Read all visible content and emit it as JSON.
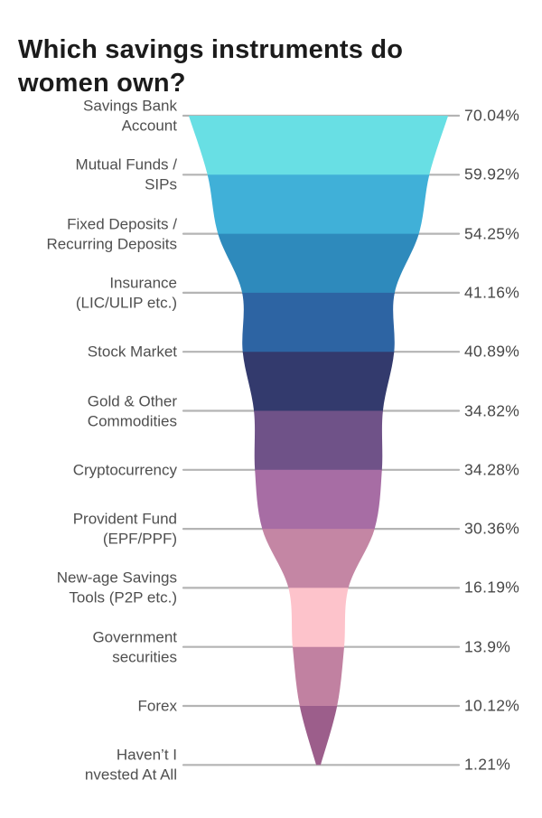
{
  "header": {
    "title_line1": "Which savings instruments do",
    "title_line2": "women own?"
  },
  "chart_data": {
    "type": "funnel",
    "title": "Which savings instruments do women own?",
    "categories": [
      "Savings Bank\nAccount",
      "Mutual Funds /\nSIPs",
      "Fixed Deposits /\nRecurring Deposits",
      "Insurance\n(LIC/ULIP etc.)",
      "Stock Market",
      "Gold & Other\nCommodities",
      "Cryptocurrency",
      "Provident Fund\n(EPF/PPF)",
      "New-age Savings\nTools (P2P etc.)",
      "Government\nsecurities",
      "Forex",
      "Haven’t I\nnvested At All"
    ],
    "values": [
      70.04,
      59.92,
      54.25,
      41.16,
      40.89,
      34.82,
      34.28,
      30.36,
      16.19,
      13.9,
      10.12,
      1.21
    ],
    "value_labels": [
      "70.04%",
      "59.92%",
      "54.25%",
      "41.16%",
      "40.89%",
      "34.82%",
      "34.28%",
      "30.36%",
      "16.19%",
      "13.9%",
      "10.12%",
      "1.21%"
    ],
    "band_colors": [
      "#68dfe4",
      "#40b0d8",
      "#2e8abc",
      "#2d64a3",
      "#333a6d",
      "#6f5288",
      "#a76da4",
      "#c486a4",
      "#fdc3cb",
      "#c181a1",
      "#9c5e8b"
    ],
    "guide_line_color": "#b4b4b4",
    "label_color": "#4f4f4f",
    "value_color": "#484848",
    "title_color": "#1b1b1b",
    "background_color": "#ffffff",
    "legend": "none",
    "orientation": "vertical, widest at top, tapers to a point at bottom",
    "grid": "horizontal guide line per category, behind funnel"
  }
}
